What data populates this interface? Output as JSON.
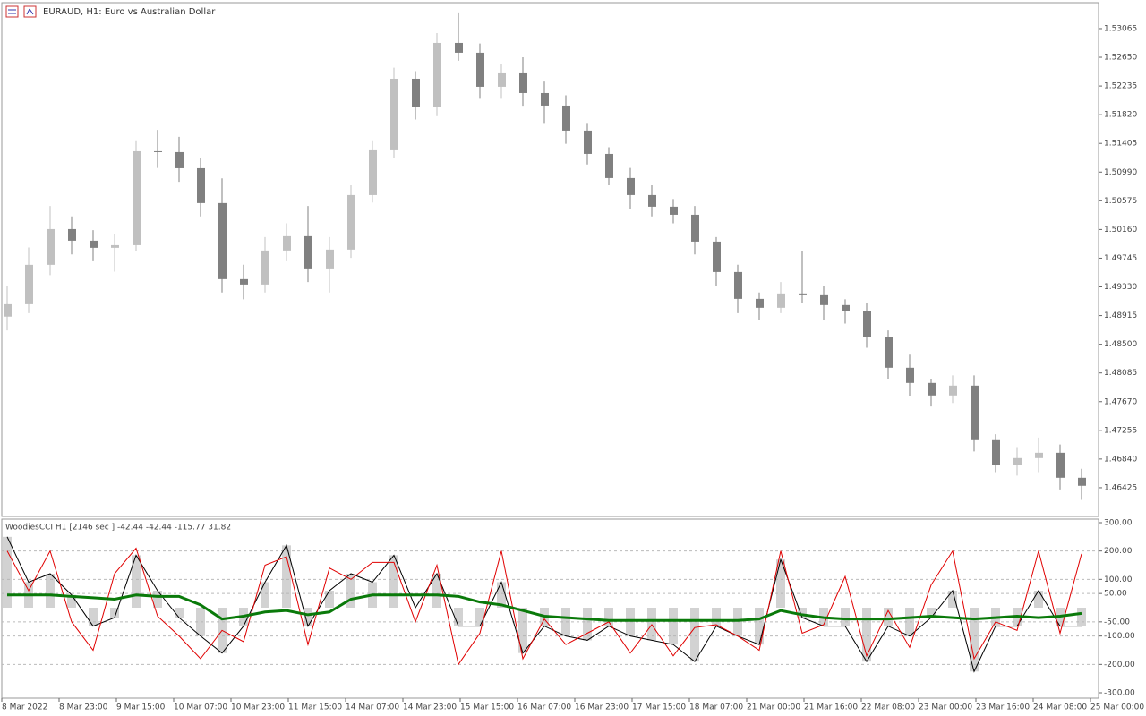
{
  "chart_data": [
    {
      "type": "candlestick",
      "title": "EURAUD, H1:  Euro vs Australian Dollar",
      "open": [
        1.489,
        1.49079,
        1.49649,
        1.50166,
        1.49998,
        1.49895,
        1.49933,
        1.51292,
        1.51279,
        1.51046,
        1.50542,
        1.49442,
        1.49364,
        1.49856,
        1.50063,
        1.49584,
        1.49869,
        1.50658,
        1.51305,
        1.5234,
        1.51926,
        1.52858,
        1.52716,
        1.52224,
        1.52418,
        1.52133,
        1.51952,
        1.5159,
        1.51253,
        1.50904,
        1.50658,
        1.5049,
        1.50373,
        1.49985,
        1.49545,
        1.49157,
        1.49028,
        1.49235,
        1.49209,
        1.49067,
        1.48976,
        1.48601,
        1.48161,
        1.47941,
        1.4776,
        1.47902,
        1.47113,
        1.4675,
        1.46854,
        1.46931,
        1.46569
      ],
      "high": [
        1.4935,
        1.499,
        1.505,
        1.5035,
        1.5015,
        1.501,
        1.5145,
        1.516,
        1.515,
        1.512,
        1.509,
        1.4965,
        1.5005,
        1.5025,
        1.505,
        1.5005,
        1.508,
        1.5145,
        1.525,
        1.5245,
        1.53,
        1.533,
        1.5285,
        1.5255,
        1.5265,
        1.523,
        1.521,
        1.517,
        1.5135,
        1.5105,
        1.508,
        1.506,
        1.505,
        1.5005,
        1.4965,
        1.4925,
        1.494,
        1.4985,
        1.4935,
        1.4915,
        1.491,
        1.487,
        1.4835,
        1.48,
        1.4805,
        1.4805,
        1.472,
        1.47,
        1.4715,
        1.4705,
        1.467
      ],
      "low": [
        1.487,
        1.4895,
        1.495,
        1.498,
        1.497,
        1.4955,
        1.4985,
        1.5105,
        1.5085,
        1.5035,
        1.4925,
        1.4915,
        1.4925,
        1.497,
        1.494,
        1.4925,
        1.4975,
        1.5055,
        1.512,
        1.5175,
        1.518,
        1.526,
        1.5205,
        1.5205,
        1.5195,
        1.517,
        1.514,
        1.511,
        1.508,
        1.5045,
        1.5035,
        1.5025,
        1.498,
        1.4935,
        1.4895,
        1.4885,
        1.4895,
        1.491,
        1.4885,
        1.488,
        1.4845,
        1.48,
        1.4775,
        1.476,
        1.4765,
        1.4695,
        1.4665,
        1.466,
        1.4665,
        1.464,
        1.4625
      ],
      "close": [
        1.49079,
        1.49649,
        1.50166,
        1.49998,
        1.49895,
        1.49933,
        1.51292,
        1.51279,
        1.51046,
        1.50542,
        1.49442,
        1.49364,
        1.49856,
        1.50063,
        1.49584,
        1.49869,
        1.50658,
        1.51305,
        1.5234,
        1.51926,
        1.52858,
        1.52716,
        1.52224,
        1.52418,
        1.52133,
        1.51952,
        1.5159,
        1.51253,
        1.50904,
        1.50658,
        1.5049,
        1.50373,
        1.49985,
        1.49545,
        1.49157,
        1.49028,
        1.49235,
        1.49209,
        1.49067,
        1.48976,
        1.48601,
        1.48161,
        1.47941,
        1.4776,
        1.47902,
        1.47113,
        1.4675,
        1.46854,
        1.46931,
        1.46569,
        1.46453
      ],
      "up_color": "#c0c0c0",
      "down_color": "#808080",
      "ylim": [
        1.4601,
        1.5344
      ],
      "yticks": [
        1.53065,
        {
          "value": 1.5265,
          "label": "1.52650"
        },
        1.52235,
        {
          "value": 1.5182,
          "label": "1.51820"
        },
        1.51405,
        {
          "value": 1.5099,
          "label": "1.50990"
        },
        1.50575,
        {
          "value": 1.5016,
          "label": "1.50160"
        },
        1.49745,
        {
          "value": 1.4933,
          "label": "1.49330"
        },
        1.48915,
        {
          "value": 1.485,
          "label": "1.48500"
        },
        1.48085,
        {
          "value": 1.4767,
          "label": "1.47670"
        },
        1.47255,
        {
          "value": 1.4684,
          "label": "1.46840"
        },
        1.46425
      ],
      "xticks": [
        "8 Mar 2022",
        "8 Mar 23:00",
        "9 Mar 15:00",
        "10 Mar 07:00",
        "10 Mar 23:00",
        "11 Mar 15:00",
        "14 Mar 07:00",
        "14 Mar 23:00",
        "15 Mar 15:00",
        "16 Mar 07:00",
        "16 Mar 23:00",
        "17 Mar 15:00",
        "18 Mar 07:00",
        "21 Mar 00:00",
        "21 Mar 16:00",
        "22 Mar 08:00",
        "23 Mar 00:00",
        "23 Mar 16:00",
        "24 Mar 08:00",
        "25 Mar 00:00"
      ]
    },
    {
      "type": "line",
      "title": "WoodiesCCI H1 [2146 sec ] -42.44 -42.44 -115.77 31.82",
      "series": [
        {
          "color": "#000000",
          "histogram_color": "#b4b4b4",
          "values": [
            250,
            90,
            120,
            45,
            -65,
            -35,
            185,
            60,
            -35,
            -100,
            -160,
            -65,
            90,
            220,
            -65,
            60,
            120,
            90,
            185,
            0,
            120,
            -65,
            -65,
            90,
            -160,
            -65,
            -100,
            -115,
            -65,
            -100,
            -115,
            -130,
            -190,
            -65,
            -100,
            -130,
            170,
            -35,
            -65,
            -65,
            -190,
            -65,
            -100,
            -35,
            60,
            -225,
            -65,
            -65,
            60,
            -65,
            -65
          ]
        },
        {
          "color": "#e00000",
          "values": [
            200,
            60,
            200,
            -50,
            -150,
            120,
            210,
            -30,
            -100,
            -180,
            -80,
            -120,
            150,
            180,
            -130,
            140,
            100,
            160,
            160,
            -50,
            150,
            -200,
            -90,
            200,
            -180,
            -40,
            -130,
            -90,
            -50,
            -160,
            -60,
            -170,
            -70,
            -60,
            -100,
            -150,
            200,
            -90,
            -60,
            110,
            -170,
            -10,
            -140,
            80,
            200,
            -180,
            -50,
            -80,
            200,
            -90,
            190
          ]
        },
        {
          "color": "#0a7a0a",
          "values": [
            45,
            45,
            45,
            40,
            35,
            30,
            45,
            40,
            40,
            10,
            -40,
            -30,
            -15,
            -10,
            -25,
            -15,
            30,
            45,
            45,
            45,
            45,
            40,
            20,
            10,
            -10,
            -30,
            -35,
            -40,
            -45,
            -45,
            -45,
            -45,
            -45,
            -45,
            -45,
            -40,
            -10,
            -25,
            -35,
            -40,
            -40,
            -40,
            -35,
            -30,
            -35,
            -40,
            -35,
            -30,
            -35,
            -30,
            -20
          ]
        }
      ],
      "ylim": [
        -300,
        300
      ],
      "yticks": [
        {
          "value": 300,
          "label": "300.00"
        },
        {
          "value": 200,
          "label": "200.00"
        },
        {
          "value": 100,
          "label": "100.00"
        },
        {
          "value": 50,
          "label": "50.00"
        },
        {
          "value": -50,
          "label": "-50.00"
        },
        {
          "value": -100,
          "label": "-100.00"
        },
        {
          "value": -200,
          "label": "-200.00"
        },
        {
          "value": -300,
          "label": "-300.00"
        }
      ],
      "grid": true
    }
  ]
}
